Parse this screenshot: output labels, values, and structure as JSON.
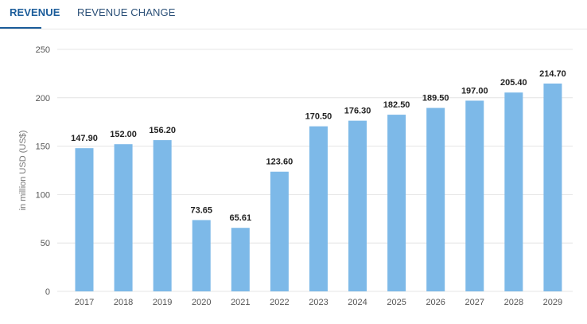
{
  "tabs": [
    {
      "label": "REVENUE",
      "active": true
    },
    {
      "label": "REVENUE CHANGE",
      "active": false
    }
  ],
  "colors": {
    "bar": "#7db9e8",
    "grid": "#e4e4e4",
    "accent": "#1b5c9a"
  },
  "chart_data": {
    "type": "bar",
    "categories": [
      "2017",
      "2018",
      "2019",
      "2020",
      "2021",
      "2022",
      "2023",
      "2024",
      "2025",
      "2026",
      "2027",
      "2028",
      "2029"
    ],
    "values": [
      147.9,
      152.0,
      156.2,
      73.65,
      65.61,
      123.6,
      170.5,
      176.3,
      182.5,
      189.5,
      197.0,
      205.4,
      214.7
    ],
    "value_labels": [
      "147.90",
      "152.00",
      "156.20",
      "73.65",
      "65.61",
      "123.60",
      "170.50",
      "176.30",
      "182.50",
      "189.50",
      "197.00",
      "205.40",
      "214.70"
    ],
    "ylabel": "in million USD (US$)",
    "ylim": [
      0,
      250
    ],
    "yticks": [
      0,
      50,
      100,
      150,
      200,
      250
    ],
    "grid": true
  }
}
